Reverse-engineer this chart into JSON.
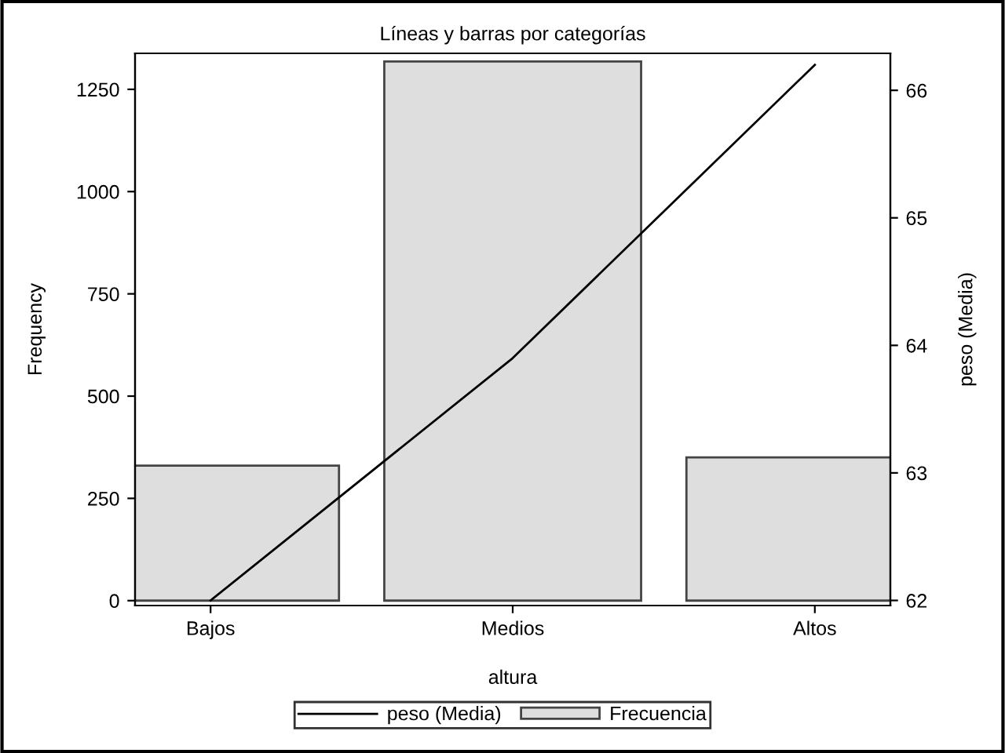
{
  "chart_data": {
    "type": "bar",
    "title": "Líneas y barras por categorías",
    "xlabel": "altura",
    "ylabel": "Frequency",
    "y2label": "peso (Media)",
    "categories": [
      "Bajos",
      "Medios",
      "Altos"
    ],
    "series": [
      {
        "name": "Frecuencia",
        "color": "#dedede",
        "values": [
          330,
          1318,
          350
        ]
      },
      {
        "name": "peso (Media)",
        "type": "line",
        "axis": "y2",
        "color": "#000000",
        "values": [
          62.0,
          63.9,
          66.2
        ]
      }
    ],
    "ylim": [
      -12,
      1338
    ],
    "yticks": [
      0,
      250,
      500,
      750,
      1000,
      1250
    ],
    "y2lim": [
      61.96,
      66.29
    ],
    "y2ticks": [
      62,
      63,
      64,
      65,
      66
    ],
    "grid": false,
    "legend": "bottom",
    "marker": "none",
    "line_style": "solid"
  }
}
